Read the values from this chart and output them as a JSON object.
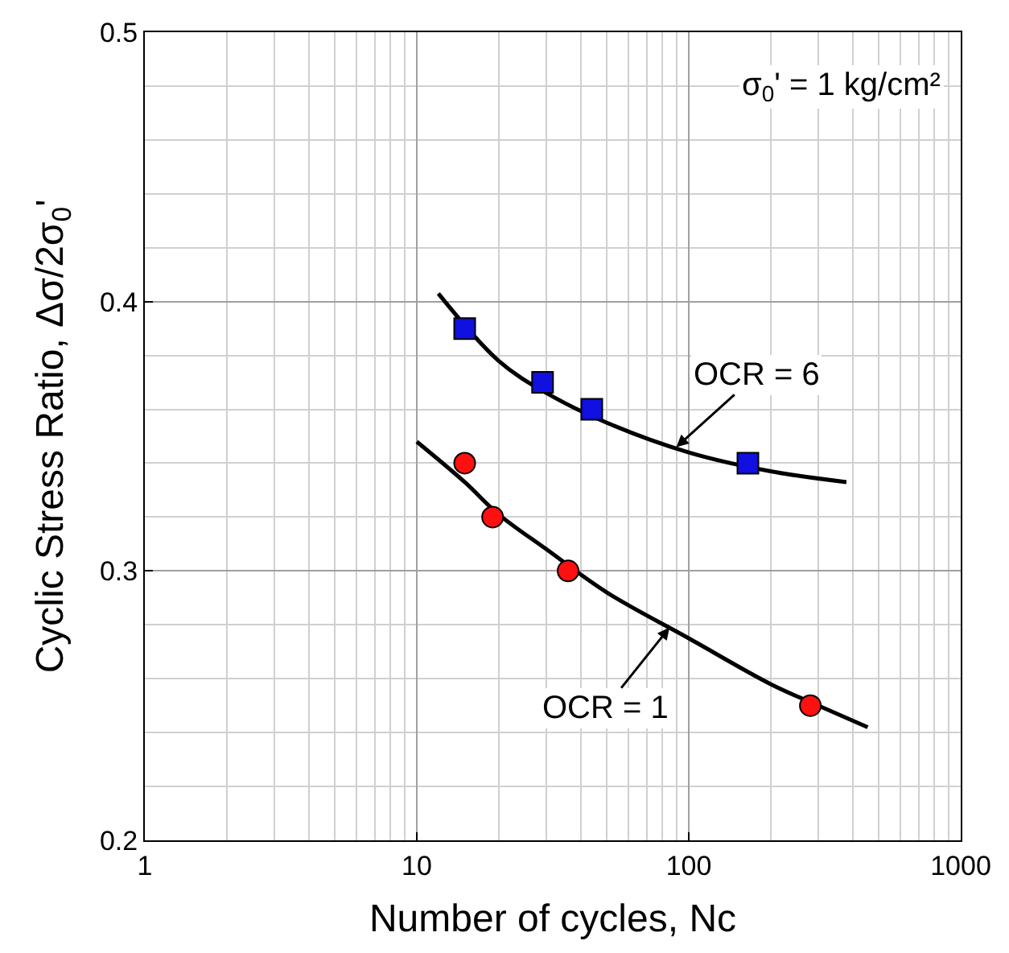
{
  "chart_data": {
    "type": "scatter",
    "xlabel": "Number of cycles, Nc",
    "ylabel": "Cyclic Stress Ratio, Δσ/2σ$_{0}$'",
    "log": "x",
    "xlim": [
      1,
      1000
    ],
    "xticks": [
      1,
      10,
      100,
      1000
    ],
    "ylim": [
      0.2,
      0.5
    ],
    "yticks": [
      0.2,
      0.3,
      0.4,
      0.5
    ],
    "grid": true,
    "series": [
      {
        "type": "line",
        "color": "#000000",
        "marker": "none",
        "x": [
          12,
          20,
          30,
          50,
          100,
          200,
          380
        ],
        "values": [
          0.403,
          0.378,
          0.366,
          0.355,
          0.344,
          0.337,
          0.333
        ]
      },
      {
        "type": "line",
        "color": "#000000",
        "marker": "none",
        "x": [
          10,
          15,
          20,
          30,
          50,
          100,
          200,
          300,
          455
        ],
        "values": [
          0.348,
          0.333,
          0.321,
          0.308,
          0.292,
          0.275,
          0.258,
          0.25,
          0.242
        ]
      },
      {
        "color": "#1010e0",
        "marker": "square",
        "x": [
          15,
          29,
          44,
          165
        ],
        "values": [
          0.39,
          0.37,
          0.36,
          0.34
        ]
      },
      {
        "color": "#ff1010",
        "marker": "circle",
        "x": [
          15,
          19,
          36,
          280
        ],
        "values": [
          0.34,
          0.32,
          0.3,
          0.25
        ]
      }
    ],
    "annotations": [
      "σ$_{0}$' = 1 kg/cm²",
      {
        "text": "OCR = 6",
        "x": 90,
        "y": 0.346
      },
      {
        "text": "OCR = 1",
        "x": 85,
        "y": 0.279
      }
    ]
  }
}
